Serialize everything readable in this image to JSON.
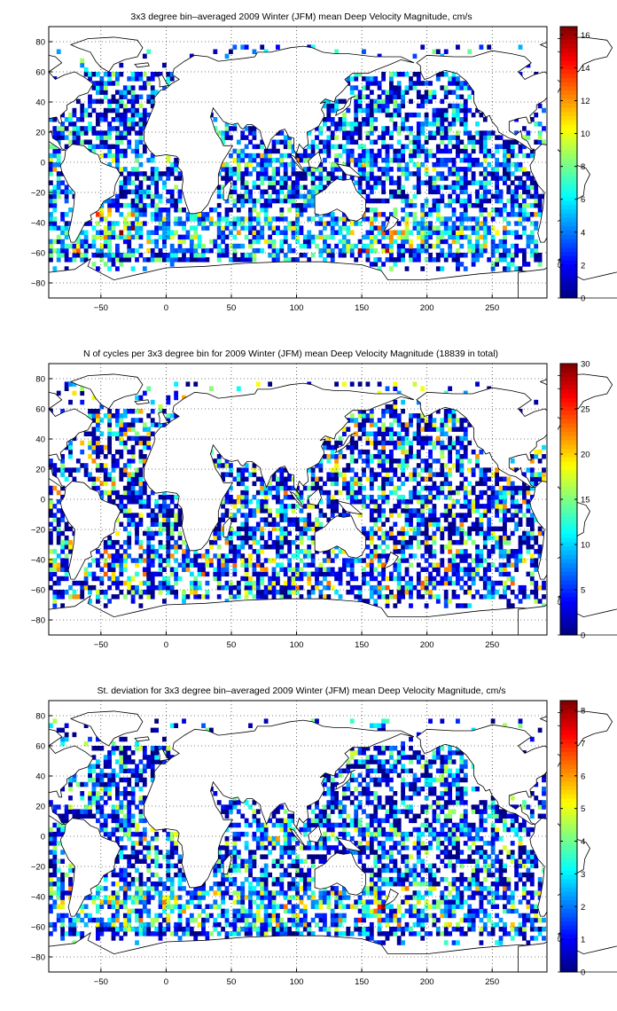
{
  "map": {
    "lon_range": [
      -90,
      292
    ],
    "lat_range": [
      -90,
      90
    ],
    "x_ticks": [
      -50,
      0,
      50,
      100,
      150,
      200,
      250
    ],
    "y_ticks": [
      80,
      60,
      40,
      20,
      0,
      -20,
      -40,
      -60,
      -80
    ],
    "grid": "dotted",
    "colormap": "jet",
    "land_fill": "#ffffff",
    "coast_color": "#000000"
  },
  "panels": [
    {
      "title": "3x3 degree bin–averaged 2009 Winter (JFM) mean Deep Velocity Magnitude, cm/s",
      "colorbar": {
        "min": 0,
        "max": 16.5,
        "ticks": [
          0,
          2,
          4,
          6,
          8,
          10,
          12,
          14,
          16
        ]
      },
      "field": "mean"
    },
    {
      "title": "N of cycles per 3x3 degree bin for 2009 Winter (JFM) mean Deep Velocity Magnitude (18839 in total)",
      "colorbar": {
        "min": 0,
        "max": 30,
        "ticks": [
          0,
          5,
          10,
          15,
          20,
          25,
          30
        ]
      },
      "field": "count"
    },
    {
      "title": "St. deviation for 3x3 degree bin–averaged 2009 Winter (JFM) mean Deep Velocity Magnitude, cm/s",
      "colorbar": {
        "min": 0,
        "max": 8.3,
        "ticks": [
          0,
          1,
          2,
          3,
          4,
          5,
          6,
          7,
          8
        ]
      },
      "field": "std"
    }
  ]
}
